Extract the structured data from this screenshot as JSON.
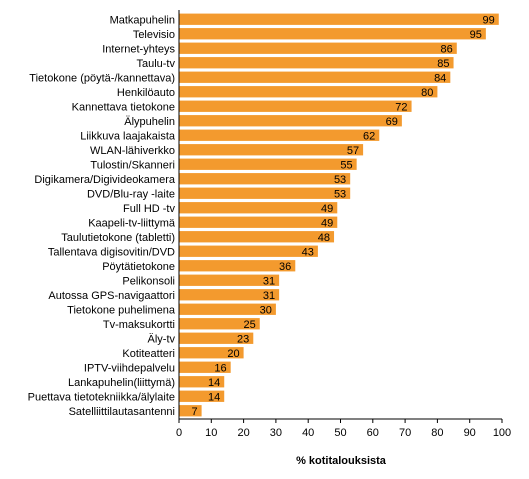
{
  "chart_data": {
    "type": "bar",
    "orientation": "horizontal",
    "categories": [
      "Matkapuhelin",
      "Televisio",
      "Internet-yhteys",
      "Taulu-tv",
      "Tietokone (pöytä-/kannettava)",
      "Henkilöauto",
      "Kannettava tietokone",
      "Älypuhelin",
      "Liikkuva laajakaista",
      "WLAN-lähiverkko",
      "Tulostin/Skanneri",
      "Digikamera/Digivideokamera",
      "DVD/Blu-ray -laite",
      "Full HD -tv",
      "Kaapeli-tv-liittymä",
      "Taulutietokone (tabletti)",
      "Tallentava digisovitin/DVD",
      "Pöytätietokone",
      "Pelikonsoli",
      "Autossa GPS-navigaattori",
      "Tietokone puhelimena",
      "Tv-maksukortti",
      "Äly-tv",
      "Kotiteatteri",
      "IPTV-viihdepalvelu",
      "Lankapuhelin(liittymä)",
      "Puettava tietotekniikka/älylaite",
      "Satelliittilautasantenni"
    ],
    "values": [
      99,
      95,
      86,
      85,
      84,
      80,
      72,
      69,
      62,
      57,
      55,
      53,
      53,
      49,
      49,
      48,
      43,
      36,
      31,
      31,
      30,
      25,
      23,
      20,
      16,
      14,
      14,
      7
    ],
    "xlabel": "% kotitalouksista",
    "xlim": [
      0,
      100
    ],
    "xticks": [
      0,
      10,
      20,
      30,
      40,
      50,
      60,
      70,
      80,
      90,
      100
    ],
    "bar_color": "#F39A2E",
    "grid": false,
    "legend": "none"
  }
}
